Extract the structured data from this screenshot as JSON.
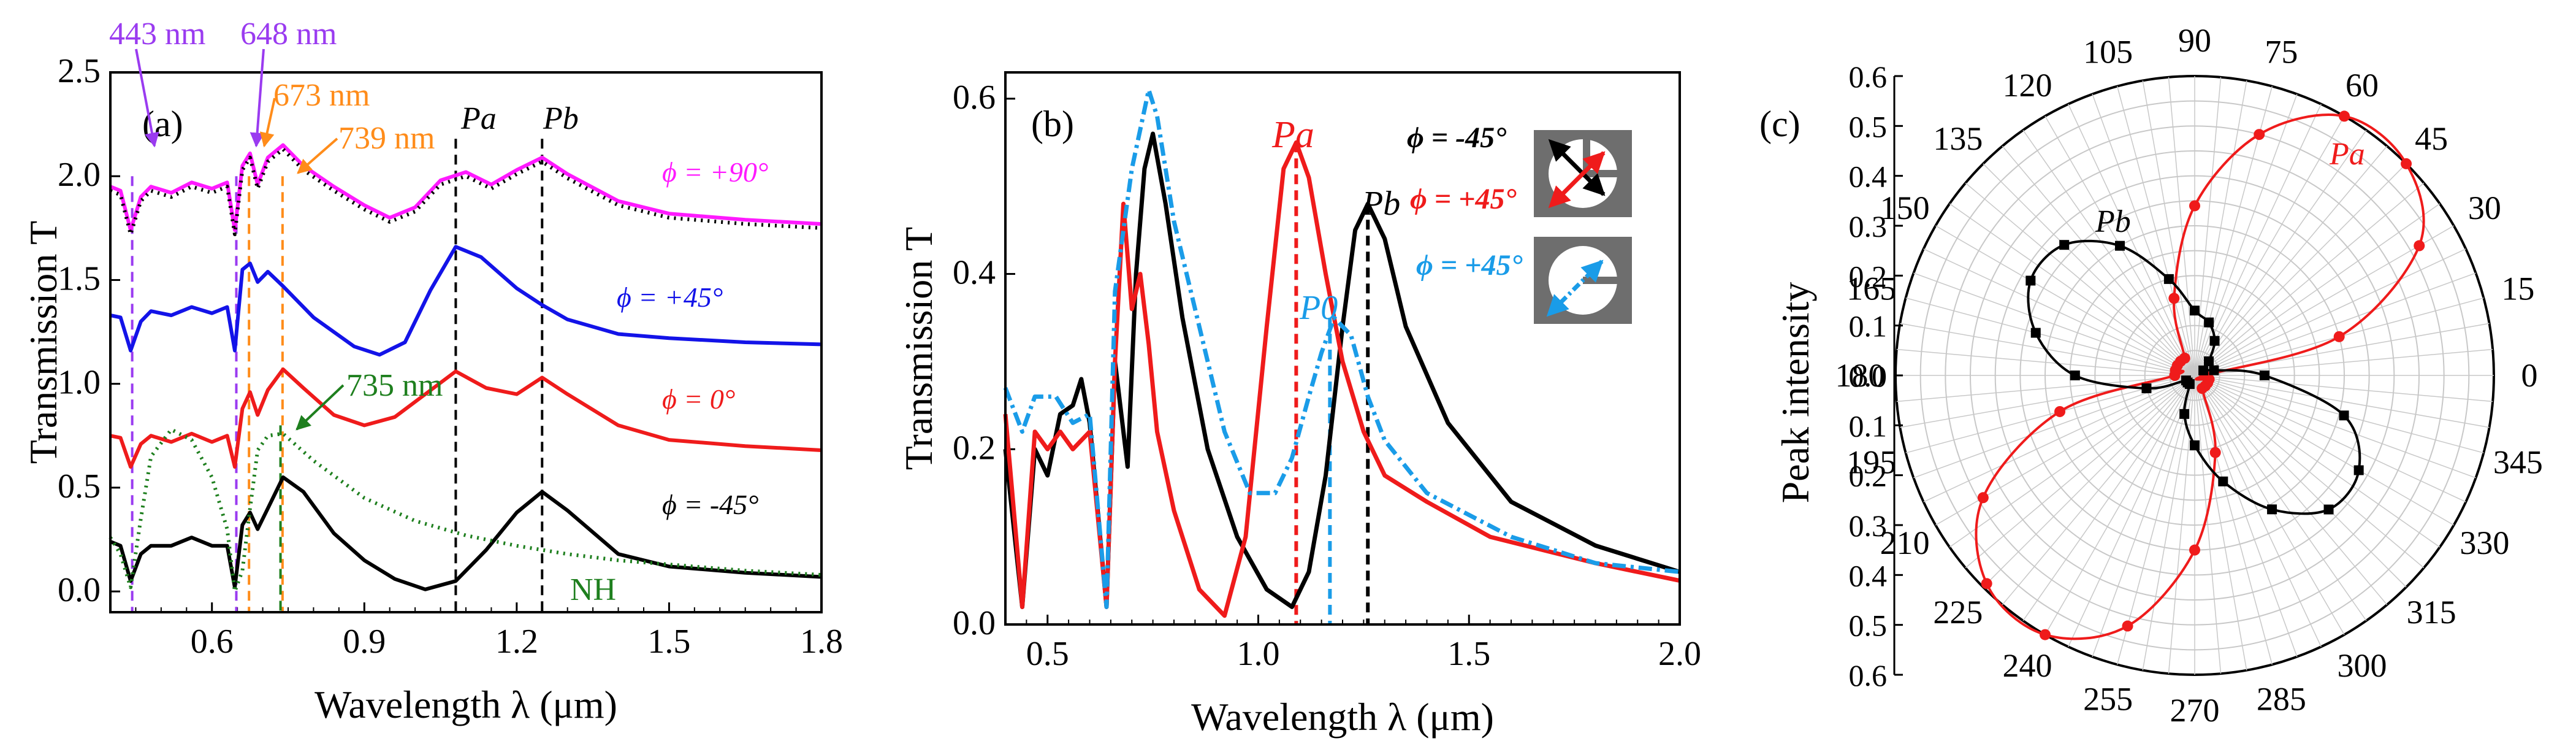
{
  "panels": {
    "a": {
      "label": "(a)",
      "xlabel": "Wavelength λ (μm)",
      "ylabel": "Transmission T",
      "xlim": [
        0.4,
        1.8
      ],
      "ylim": [
        -0.1,
        2.5
      ],
      "xticks": [
        "0.6",
        "0.9",
        "1.2",
        "1.5",
        "1.8"
      ],
      "yticks": [
        "0.0",
        "0.5",
        "1.0",
        "1.5",
        "2.0",
        "2.5"
      ],
      "curve_labels": {
        "p90": "ϕ = +90°",
        "p45": "ϕ = +45°",
        "p0": "ϕ = 0°",
        "m45": "ϕ = -45°",
        "nh": "NH"
      },
      "annotations": {
        "a443": "443 nm",
        "a648": "648 nm",
        "a673": "673 nm",
        "a739": "739 nm",
        "a735": "735 nm"
      },
      "peak_labels": {
        "pa": "Pa",
        "pb": "Pb"
      }
    },
    "b": {
      "label": "(b)",
      "xlabel": "Wavelength λ (μm)",
      "ylabel": "Transmission T",
      "xlim": [
        0.4,
        2.0
      ],
      "ylim": [
        0,
        0.63
      ],
      "xticks": [
        "0.5",
        "1.0",
        "1.5",
        "2.0"
      ],
      "yticks": [
        "0.0",
        "0.2",
        "0.4",
        "0.6"
      ],
      "legend": {
        "black": "ϕ = -45°",
        "red": "ϕ = +45°",
        "blue": "ϕ = +45°"
      },
      "peak_labels": {
        "pa": "Pa",
        "pb": "Pb",
        "p0": "P0"
      }
    },
    "c": {
      "label": "(c)",
      "ylabel": "Peak intensity",
      "radial_ticks": [
        "0.6",
        "0.5",
        "0.4",
        "0.3",
        "0.2",
        "0.1",
        "0.0"
      ],
      "radial_ticks_lower": [
        "0.1",
        "0.2",
        "0.3",
        "0.4",
        "0.5",
        "0.6"
      ],
      "angle_labels": [
        "0",
        "15",
        "30",
        "45",
        "60",
        "75",
        "90",
        "105",
        "120",
        "135",
        "150",
        "165",
        "180",
        "195",
        "210",
        "225",
        "240",
        "255",
        "270",
        "285",
        "300",
        "315",
        "330",
        "345"
      ],
      "series_labels": {
        "pa": "Pa",
        "pb": "Pb"
      }
    }
  },
  "colors": {
    "black": "#000000",
    "red": "#ef1b1b",
    "blue": "#1313e8",
    "magenta": "#ff1aff",
    "green": "#1e7f1e",
    "orange": "#ff8c1a",
    "purple": "#9a3bf0",
    "lightblue": "#1a9ce8",
    "grid": "#c8c8c8"
  },
  "chart_data": [
    {
      "panel": "a",
      "type": "line",
      "series": [
        {
          "name": "ϕ = +90°",
          "color": "magenta",
          "x": [
            0.4,
            0.42,
            0.44,
            0.46,
            0.48,
            0.52,
            0.56,
            0.6,
            0.63,
            0.645,
            0.66,
            0.675,
            0.69,
            0.71,
            0.74,
            0.78,
            0.84,
            0.9,
            0.95,
            1.0,
            1.05,
            1.1,
            1.15,
            1.2,
            1.25,
            1.3,
            1.4,
            1.5,
            1.65,
            1.8
          ],
          "y": [
            1.95,
            1.93,
            1.74,
            1.9,
            1.95,
            1.92,
            1.97,
            1.94,
            1.97,
            1.74,
            2.05,
            2.11,
            1.96,
            2.09,
            2.15,
            2.05,
            1.95,
            1.86,
            1.8,
            1.85,
            1.98,
            2.02,
            1.96,
            2.03,
            2.09,
            2.01,
            1.88,
            1.82,
            1.79,
            1.77
          ]
        },
        {
          "name": "NH 90 dotted",
          "color": "black",
          "style": "dotted",
          "x": [
            0.4,
            0.42,
            0.44,
            0.46,
            0.48,
            0.52,
            0.56,
            0.6,
            0.63,
            0.645,
            0.66,
            0.675,
            0.69,
            0.71,
            0.74,
            0.78,
            0.84,
            0.9,
            0.95,
            1.0,
            1.05,
            1.1,
            1.15,
            1.2,
            1.25,
            1.3,
            1.4,
            1.5,
            1.65,
            1.8
          ],
          "y": [
            1.93,
            1.91,
            1.72,
            1.88,
            1.93,
            1.9,
            1.95,
            1.92,
            1.95,
            1.72,
            2.03,
            2.09,
            1.94,
            2.07,
            2.13,
            2.03,
            1.93,
            1.84,
            1.78,
            1.83,
            1.96,
            2.0,
            1.94,
            2.01,
            2.07,
            1.99,
            1.86,
            1.8,
            1.77,
            1.75
          ]
        },
        {
          "name": "ϕ = +45°",
          "color": "blue",
          "x": [
            0.4,
            0.42,
            0.44,
            0.46,
            0.48,
            0.52,
            0.56,
            0.6,
            0.63,
            0.645,
            0.66,
            0.675,
            0.69,
            0.71,
            0.74,
            0.8,
            0.88,
            0.93,
            0.98,
            1.03,
            1.08,
            1.13,
            1.2,
            1.25,
            1.3,
            1.4,
            1.5,
            1.65,
            1.8
          ],
          "y": [
            1.33,
            1.32,
            1.16,
            1.3,
            1.35,
            1.33,
            1.37,
            1.34,
            1.37,
            1.16,
            1.55,
            1.58,
            1.49,
            1.54,
            1.47,
            1.32,
            1.18,
            1.14,
            1.2,
            1.45,
            1.66,
            1.61,
            1.46,
            1.38,
            1.31,
            1.24,
            1.22,
            1.2,
            1.19
          ]
        },
        {
          "name": "ϕ = 0°",
          "color": "red",
          "x": [
            0.4,
            0.42,
            0.44,
            0.46,
            0.48,
            0.52,
            0.56,
            0.6,
            0.63,
            0.645,
            0.66,
            0.675,
            0.69,
            0.71,
            0.74,
            0.78,
            0.84,
            0.9,
            0.96,
            1.02,
            1.08,
            1.14,
            1.2,
            1.25,
            1.3,
            1.4,
            1.5,
            1.65,
            1.8
          ],
          "y": [
            0.75,
            0.74,
            0.6,
            0.71,
            0.75,
            0.72,
            0.76,
            0.72,
            0.75,
            0.6,
            0.88,
            0.96,
            0.85,
            0.97,
            1.07,
            0.98,
            0.85,
            0.8,
            0.84,
            0.95,
            1.06,
            0.98,
            0.95,
            1.03,
            0.95,
            0.8,
            0.73,
            0.7,
            0.68
          ]
        },
        {
          "name": "ϕ = -45°",
          "color": "black",
          "x": [
            0.4,
            0.42,
            0.44,
            0.46,
            0.48,
            0.52,
            0.56,
            0.6,
            0.63,
            0.645,
            0.66,
            0.675,
            0.69,
            0.71,
            0.74,
            0.78,
            0.84,
            0.9,
            0.96,
            1.02,
            1.08,
            1.14,
            1.2,
            1.25,
            1.3,
            1.4,
            1.5,
            1.65,
            1.8
          ],
          "y": [
            0.24,
            0.22,
            0.05,
            0.18,
            0.22,
            0.22,
            0.26,
            0.22,
            0.22,
            0.02,
            0.32,
            0.38,
            0.3,
            0.4,
            0.55,
            0.48,
            0.28,
            0.15,
            0.06,
            0.01,
            0.05,
            0.2,
            0.38,
            0.48,
            0.39,
            0.18,
            0.12,
            0.09,
            0.07
          ]
        },
        {
          "name": "NH",
          "color": "green",
          "style": "dotted",
          "x": [
            0.4,
            0.42,
            0.44,
            0.46,
            0.48,
            0.52,
            0.56,
            0.6,
            0.63,
            0.645,
            0.66,
            0.675,
            0.69,
            0.71,
            0.74,
            0.8,
            0.9,
            1.0,
            1.1,
            1.2,
            1.3,
            1.4,
            1.5,
            1.65,
            1.8
          ],
          "y": [
            0.26,
            0.18,
            0.02,
            0.35,
            0.65,
            0.78,
            0.73,
            0.55,
            0.3,
            0.0,
            0.1,
            0.4,
            0.68,
            0.75,
            0.76,
            0.63,
            0.45,
            0.34,
            0.27,
            0.22,
            0.18,
            0.15,
            0.13,
            0.1,
            0.08
          ]
        }
      ],
      "vlines": [
        {
          "x": 0.443,
          "color": "purple",
          "ymax": 2.0
        },
        {
          "x": 0.648,
          "color": "purple",
          "ymax": 2.0
        },
        {
          "x": 0.673,
          "color": "orange",
          "ymax": 2.0
        },
        {
          "x": 0.739,
          "color": "orange",
          "ymax": 2.0
        },
        {
          "x": 0.735,
          "color": "green",
          "ymax": 0.8
        },
        {
          "x": 1.08,
          "color": "black",
          "ymax": 2.18
        },
        {
          "x": 1.25,
          "color": "black",
          "ymax": 2.18
        }
      ]
    },
    {
      "panel": "b",
      "type": "line",
      "series": [
        {
          "name": "ϕ = -45° (black)",
          "color": "black",
          "x": [
            0.4,
            0.44,
            0.47,
            0.5,
            0.53,
            0.56,
            0.58,
            0.6,
            0.64,
            0.66,
            0.69,
            0.71,
            0.73,
            0.75,
            0.78,
            0.82,
            0.88,
            0.95,
            1.02,
            1.08,
            1.12,
            1.16,
            1.2,
            1.23,
            1.26,
            1.3,
            1.35,
            1.45,
            1.6,
            1.8,
            2.0
          ],
          "y": [
            0.2,
            0.02,
            0.2,
            0.17,
            0.24,
            0.25,
            0.28,
            0.23,
            0.02,
            0.3,
            0.18,
            0.4,
            0.52,
            0.56,
            0.48,
            0.35,
            0.2,
            0.1,
            0.04,
            0.02,
            0.06,
            0.17,
            0.34,
            0.45,
            0.48,
            0.44,
            0.34,
            0.23,
            0.14,
            0.09,
            0.06
          ]
        },
        {
          "name": "ϕ = +45° (red)",
          "color": "red",
          "x": [
            0.4,
            0.44,
            0.47,
            0.5,
            0.53,
            0.56,
            0.6,
            0.64,
            0.66,
            0.68,
            0.7,
            0.72,
            0.74,
            0.76,
            0.8,
            0.86,
            0.92,
            0.97,
            1.02,
            1.06,
            1.09,
            1.12,
            1.16,
            1.2,
            1.25,
            1.3,
            1.4,
            1.55,
            1.8,
            2.0
          ],
          "y": [
            0.24,
            0.02,
            0.22,
            0.2,
            0.22,
            0.2,
            0.22,
            0.02,
            0.3,
            0.48,
            0.36,
            0.4,
            0.32,
            0.22,
            0.13,
            0.04,
            0.01,
            0.1,
            0.34,
            0.52,
            0.55,
            0.51,
            0.4,
            0.3,
            0.22,
            0.17,
            0.14,
            0.1,
            0.07,
            0.05
          ]
        },
        {
          "name": "ϕ = +45° (blue)",
          "color": "lightblue",
          "style": "dashdot",
          "x": [
            0.4,
            0.44,
            0.47,
            0.52,
            0.56,
            0.6,
            0.64,
            0.66,
            0.7,
            0.74,
            0.76,
            0.8,
            0.86,
            0.92,
            0.98,
            1.04,
            1.08,
            1.12,
            1.15,
            1.18,
            1.22,
            1.26,
            1.3,
            1.4,
            1.6,
            1.8,
            2.0
          ],
          "y": [
            0.27,
            0.22,
            0.26,
            0.26,
            0.23,
            0.24,
            0.02,
            0.38,
            0.52,
            0.61,
            0.58,
            0.46,
            0.34,
            0.22,
            0.15,
            0.15,
            0.19,
            0.26,
            0.31,
            0.35,
            0.33,
            0.26,
            0.21,
            0.15,
            0.1,
            0.07,
            0.06
          ]
        }
      ],
      "vlines": [
        {
          "x": 1.09,
          "color": "red",
          "ymax": 0.55
        },
        {
          "x": 1.17,
          "color": "lightblue",
          "ymax": 0.35
        },
        {
          "x": 1.26,
          "color": "black",
          "ymax": 0.48
        }
      ]
    },
    {
      "panel": "c",
      "type": "polar",
      "rmax": 0.6,
      "series": [
        {
          "name": "Pa",
          "color": "red",
          "marker": "circle",
          "angles": [
            0,
            15,
            30,
            45,
            60,
            75,
            90,
            105,
            120,
            135,
            150,
            165,
            180,
            195,
            210,
            225,
            240,
            255,
            270,
            285,
            300,
            315,
            330,
            345
          ],
          "r": [
            0.02,
            0.3,
            0.52,
            0.6,
            0.6,
            0.5,
            0.34,
            0.16,
            0.04,
            0.04,
            0.04,
            0.04,
            0.04,
            0.28,
            0.49,
            0.59,
            0.6,
            0.52,
            0.35,
            0.16,
            0.03,
            0.03,
            0.03,
            0.03
          ]
        },
        {
          "name": "Pb",
          "color": "black",
          "marker": "square",
          "angles": [
            0,
            15,
            30,
            45,
            60,
            75,
            90,
            105,
            120,
            135,
            150,
            165,
            180,
            195,
            210,
            225,
            240,
            255,
            270,
            285,
            300,
            315,
            330,
            345
          ],
          "r": [
            0.14,
            0.04,
            0.02,
            0.04,
            0.08,
            0.11,
            0.13,
            0.2,
            0.3,
            0.37,
            0.38,
            0.33,
            0.24,
            0.1,
            0.02,
            0.02,
            0.02,
            0.08,
            0.14,
            0.22,
            0.31,
            0.38,
            0.38,
            0.31
          ]
        }
      ]
    }
  ]
}
